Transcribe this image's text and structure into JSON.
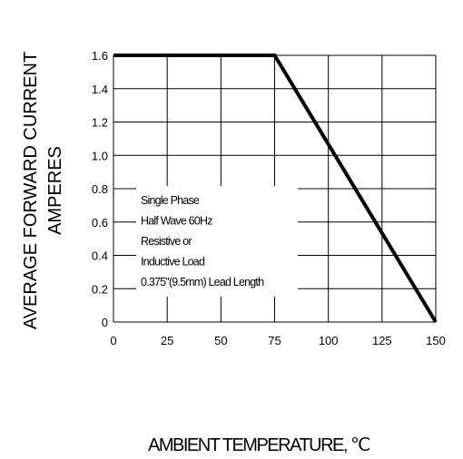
{
  "chart_data": {
    "type": "line",
    "ylabel": "AVERAGE FORWARD CURRENT AMPERES",
    "ylabel_lines": [
      "AVERAGE FORWARD CURRENT",
      "AMPERES"
    ],
    "xlabel": "AMBIENT TEMPERATURE, ℃",
    "xlim": [
      0,
      150
    ],
    "ylim": [
      0,
      1.6
    ],
    "x_ticks": [
      "0",
      "25",
      "50",
      "75",
      "100",
      "125",
      "150"
    ],
    "y_ticks": [
      "0",
      "0.2",
      "0.4",
      "0.6",
      "0.8",
      "1.0",
      "1.2",
      "1.4",
      "1.6"
    ],
    "grid": true,
    "series": [
      {
        "x": [
          0,
          75,
          150
        ],
        "y": [
          1.6,
          1.6,
          0
        ]
      }
    ],
    "annotation": [
      "Single Phase",
      "Half Wave 60Hz",
      "Resistive or",
      "Inductive Load",
      "0.375\"(9.5mm) Lead Length"
    ]
  }
}
